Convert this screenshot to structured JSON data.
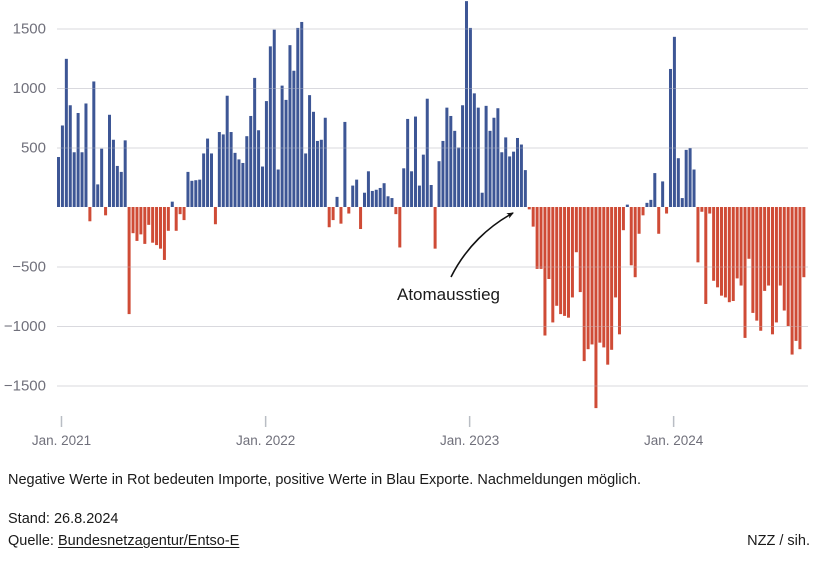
{
  "chart_data": {
    "type": "bar",
    "title": "",
    "xlabel": "",
    "ylabel": "",
    "legend": "none",
    "grid": "horizontal",
    "ylim": [
      -1750,
      1755
    ],
    "yticks": [
      {
        "label": "1500",
        "value": 1500
      },
      {
        "label": "1000",
        "value": 1000
      },
      {
        "label": "500",
        "value": 500
      },
      {
        "label": "−500",
        "value": -500
      },
      {
        "label": "−1000",
        "value": -1000
      },
      {
        "label": "−1500",
        "value": -1500
      }
    ],
    "xticks": [
      {
        "label": "Jan. 2021",
        "index": 0.76
      },
      {
        "label": "Jan. 2022",
        "index": 52.8
      },
      {
        "label": "Jan. 2023",
        "index": 104.8
      },
      {
        "label": "Jan. 2024",
        "index": 156.8
      }
    ],
    "annotation": {
      "text": "Atomausstieg"
    },
    "colors": {
      "positive": "#3d5695",
      "negative": "#cf4b36",
      "gridline": "#d9d9de",
      "axis_text": "#70707b",
      "tick": "#b9bdc4",
      "annotation_text": "#1a1a1a"
    },
    "start_label": "Jan. 2021",
    "frequency": "weekly",
    "values": [
      420,
      685,
      1245,
      855,
      460,
      790,
      460,
      870,
      -120,
      1055,
      190,
      490,
      -70,
      775,
      565,
      345,
      295,
      560,
      -900,
      -220,
      -285,
      -230,
      -310,
      -150,
      -300,
      -320,
      -350,
      -445,
      -200,
      45,
      -200,
      -60,
      -110,
      295,
      220,
      225,
      230,
      450,
      575,
      450,
      -145,
      630,
      610,
      935,
      630,
      455,
      400,
      370,
      595,
      765,
      1085,
      645,
      340,
      890,
      1350,
      1490,
      315,
      1020,
      900,
      1360,
      1145,
      1505,
      1555,
      450,
      940,
      800,
      555,
      565,
      750,
      -170,
      -110,
      85,
      -140,
      715,
      -55,
      180,
      230,
      -185,
      120,
      300,
      135,
      145,
      160,
      200,
      90,
      75,
      -60,
      -340,
      325,
      740,
      300,
      760,
      180,
      440,
      910,
      185,
      -350,
      385,
      555,
      835,
      765,
      640,
      500,
      855,
      1730,
      1505,
      955,
      835,
      120,
      850,
      640,
      750,
      830,
      460,
      585,
      425,
      465,
      580,
      525,
      310,
      -20,
      -165,
      -520,
      -520,
      -1080,
      -605,
      -970,
      -830,
      -900,
      -915,
      -930,
      -760,
      -380,
      -715,
      -1295,
      -1195,
      -1155,
      -1690,
      -1140,
      -1180,
      -1325,
      -1200,
      -760,
      -1070,
      -195,
      20,
      -490,
      -590,
      -225,
      -70,
      35,
      60,
      285,
      -225,
      215,
      -55,
      1160,
      1430,
      410,
      75,
      480,
      495,
      315,
      -465,
      -40,
      -815,
      -55,
      -620,
      -675,
      -745,
      -760,
      -800,
      -790,
      -600,
      -660,
      -1100,
      -435,
      -890,
      -955,
      -1040,
      -705,
      -660,
      -1070,
      -970,
      -660,
      -870,
      -1000,
      -1240,
      -1125,
      -1195,
      -590
    ]
  },
  "footer": {
    "note": "Negative Werte in Rot bedeuten Importe, positive Werte in Blau Exporte. Nachmeldungen möglich.",
    "stand": "Stand: 26.8.2024",
    "quelle_prefix": "Quelle: ",
    "quelle_link": "Bundesnetzagentur/Entso-E",
    "credit": "NZZ / sih."
  }
}
